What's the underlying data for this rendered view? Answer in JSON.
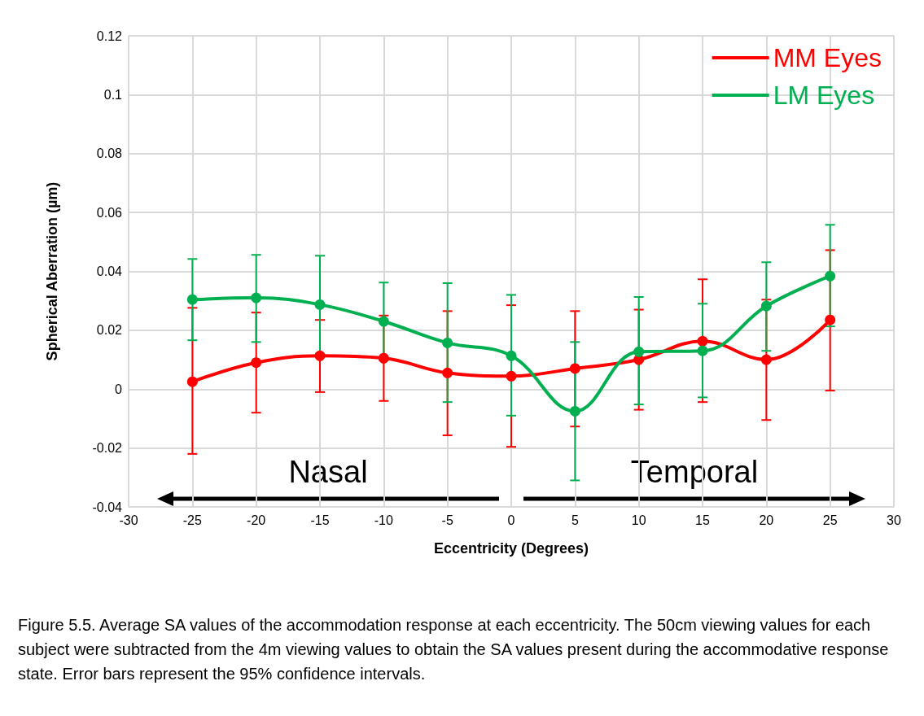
{
  "chart_data": {
    "type": "line",
    "xlabel": "Eccentricity (Degrees)",
    "ylabel": "Spherical Aberration (µm)",
    "x": [
      -25,
      -20,
      -15,
      -10,
      -5,
      0,
      5,
      10,
      15,
      20,
      25
    ],
    "series": [
      {
        "name": "MM Eyes",
        "color": "#ff0000",
        "values": [
          0.0025,
          0.009,
          0.0113,
          0.0105,
          0.0055,
          0.0044,
          0.007,
          0.01,
          0.0163,
          0.01,
          0.0235
        ],
        "errors": [
          [
            -0.022,
            0.0276
          ],
          [
            -0.008,
            0.026
          ],
          [
            -0.001,
            0.0235
          ],
          [
            -0.004,
            0.025
          ],
          [
            -0.0157,
            0.0265
          ],
          [
            -0.0196,
            0.0285
          ],
          [
            -0.0127,
            0.0265
          ],
          [
            -0.007,
            0.027
          ],
          [
            -0.0044,
            0.0373
          ],
          [
            -0.0105,
            0.0304
          ],
          [
            -0.0005,
            0.0472
          ]
        ]
      },
      {
        "name": "LM Eyes",
        "color": "#00b050",
        "values": [
          0.0304,
          0.031,
          0.0287,
          0.023,
          0.0157,
          0.0113,
          -0.0075,
          0.0127,
          0.013,
          0.0282,
          0.0384
        ],
        "errors": [
          [
            0.0166,
            0.0442
          ],
          [
            0.016,
            0.0456
          ],
          [
            0.012,
            0.0453
          ],
          [
            0.0098,
            0.0362
          ],
          [
            -0.0044,
            0.036
          ],
          [
            -0.009,
            0.032
          ],
          [
            -0.031,
            0.016
          ],
          [
            -0.0052,
            0.0313
          ],
          [
            -0.0028,
            0.029
          ],
          [
            0.013,
            0.0431
          ],
          [
            0.0213,
            0.0558
          ]
        ]
      }
    ],
    "xlim": [
      -30,
      30
    ],
    "xticks": [
      -30,
      -25,
      -20,
      -15,
      -10,
      -5,
      0,
      5,
      10,
      15,
      20,
      25,
      30
    ],
    "ylim": [
      -0.04,
      0.12
    ],
    "yticks": [
      -0.04,
      -0.02,
      0,
      0.02,
      0.04,
      0.06,
      0.08,
      0.1,
      0.12
    ],
    "grid": true,
    "legend": "top right",
    "marker": "circle",
    "line_style": "solid",
    "annotations": [
      "Nasal",
      "Temporal",
      "Figure 5.5. Average SA values of the accommodation response at each eccentricity. The 50cm viewing values for each subject were subtracted from the 4m viewing values to obtain the SA values present during the accommodative response state. Error bars represent the 95% confidence intervals."
    ]
  }
}
